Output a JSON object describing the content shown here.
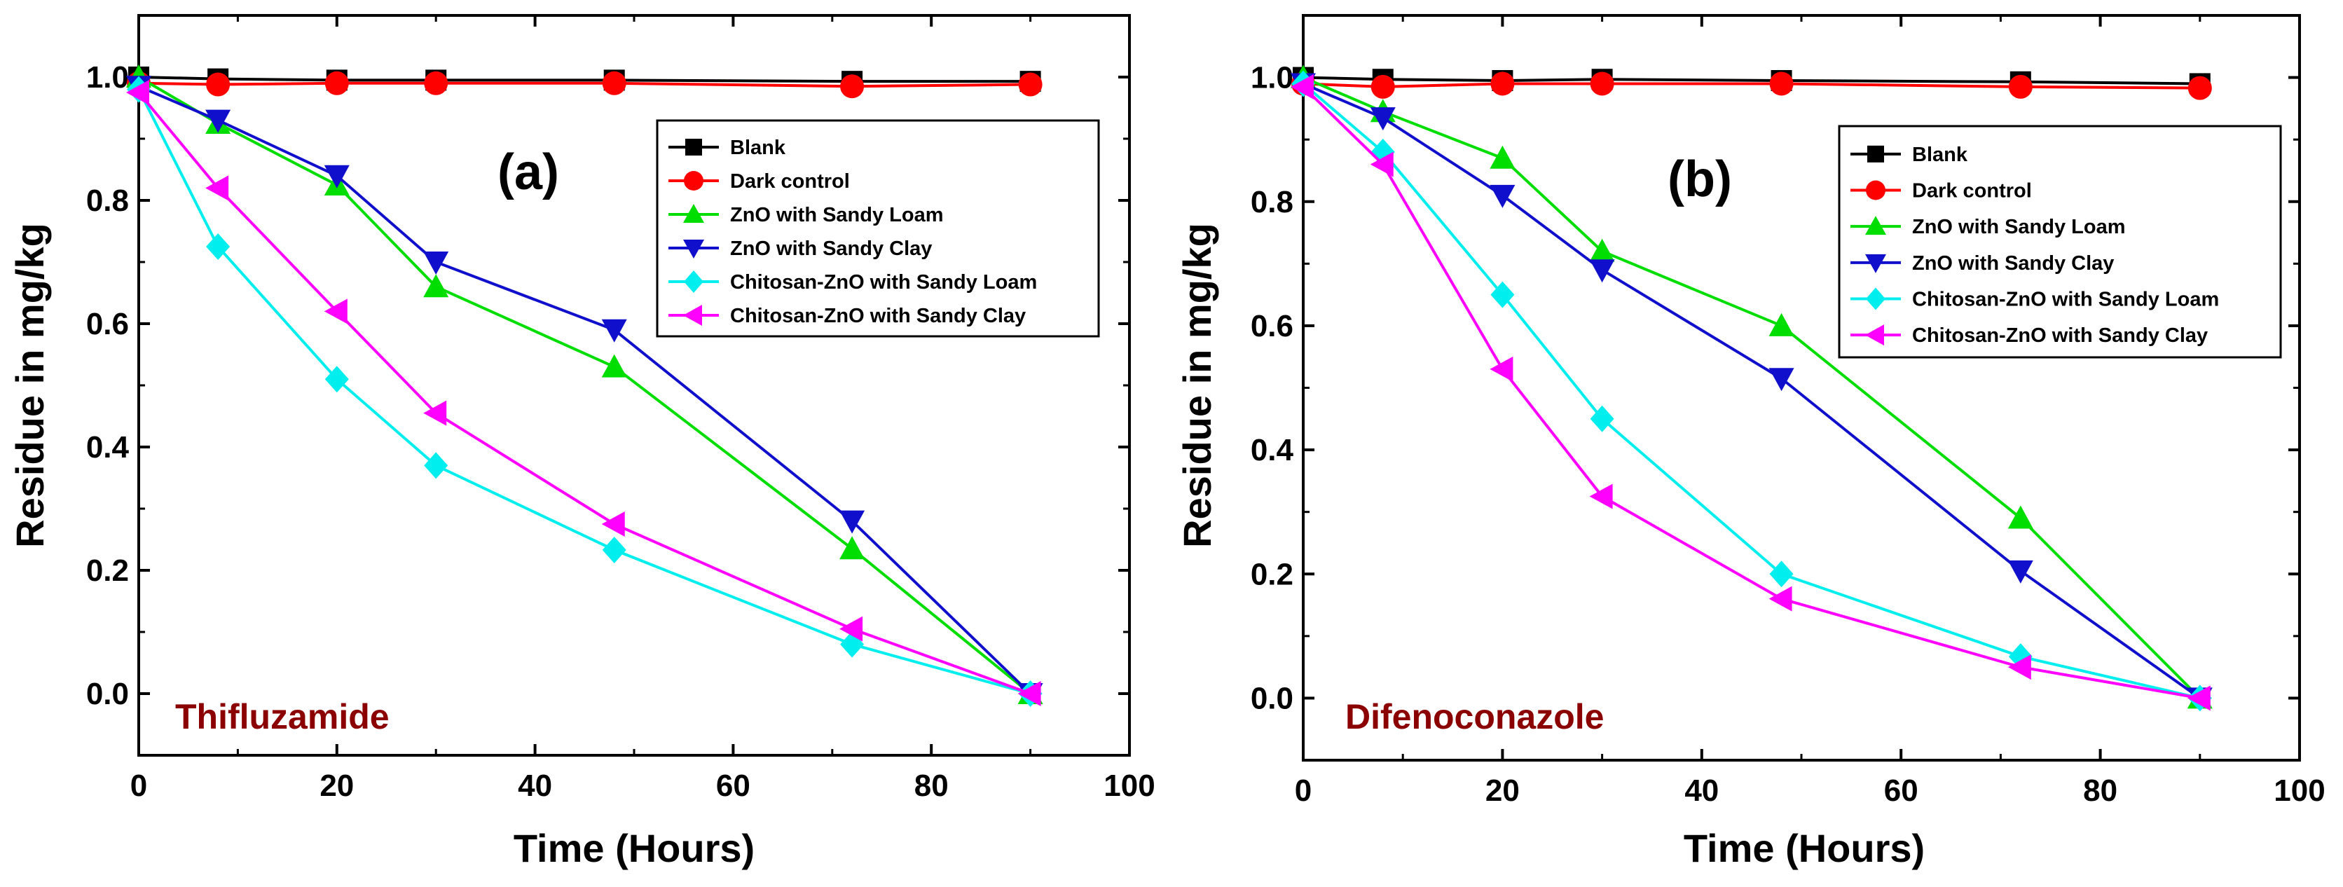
{
  "chart_data": [
    {
      "type": "line",
      "panel_label": "(a)",
      "annotation": "Thifluzamide",
      "annotation_color": "#8b0000",
      "xlabel": "Time (Hours)",
      "ylabel": "Residue in mg/kg",
      "xlim": [
        0,
        100
      ],
      "ylim": [
        -0.1,
        1.1
      ],
      "xticks": [
        0,
        20,
        40,
        60,
        80,
        100
      ],
      "xtick_labels": [
        "0",
        "20",
        "40",
        "60",
        "80",
        "100"
      ],
      "yticks": [
        0.0,
        0.2,
        0.4,
        0.6,
        0.8,
        1.0
      ],
      "ytick_labels": [
        "0.0",
        "0.2",
        "0.4",
        "0.6",
        "0.8",
        "1.0"
      ],
      "legend_position": "top-right",
      "grid": false,
      "x": [
        0,
        8,
        20,
        30,
        48,
        72,
        90
      ],
      "series": [
        {
          "name": "Blank",
          "color": "#000000",
          "marker": "square",
          "values": [
            1.0,
            0.997,
            0.995,
            0.995,
            0.995,
            0.993,
            0.993
          ]
        },
        {
          "name": "Dark control",
          "color": "#ff0000",
          "marker": "circle",
          "values": [
            0.99,
            0.988,
            0.99,
            0.99,
            0.99,
            0.985,
            0.988
          ]
        },
        {
          "name": "ZnO with Sandy Loam",
          "color": "#00dd00",
          "marker": "triangle-up",
          "values": [
            1.0,
            0.925,
            0.825,
            0.66,
            0.53,
            0.235,
            0.0
          ]
        },
        {
          "name": "ZnO with Sandy Clay",
          "color": "#1010cc",
          "marker": "triangle-down",
          "values": [
            0.985,
            0.93,
            0.84,
            0.7,
            0.59,
            0.28,
            0.0
          ]
        },
        {
          "name": "Chitosan-ZnO with Sandy Loam",
          "color": "#00eeee",
          "marker": "diamond",
          "values": [
            0.98,
            0.725,
            0.51,
            0.37,
            0.233,
            0.08,
            0.0
          ]
        },
        {
          "name": "Chitosan-ZnO with Sandy Clay",
          "color": "#ff00ff",
          "marker": "triangle-left",
          "values": [
            0.975,
            0.82,
            0.62,
            0.455,
            0.275,
            0.105,
            0.0
          ]
        }
      ]
    },
    {
      "type": "line",
      "panel_label": "(b)",
      "annotation": "Difenoconazole",
      "annotation_color": "#8b0000",
      "xlabel": "Time (Hours)",
      "ylabel": "Residue in mg/kg",
      "xlim": [
        0,
        100
      ],
      "ylim": [
        -0.1,
        1.1
      ],
      "xticks": [
        0,
        20,
        40,
        60,
        80,
        100
      ],
      "xtick_labels": [
        "0",
        "20",
        "40",
        "60",
        "80",
        "100"
      ],
      "yticks": [
        0.0,
        0.2,
        0.4,
        0.6,
        0.8,
        1.0
      ],
      "ytick_labels": [
        "0.0",
        "0.2",
        "0.4",
        "0.6",
        "0.8",
        "1.0"
      ],
      "legend_position": "top-right",
      "grid": false,
      "x": [
        0,
        8,
        20,
        30,
        48,
        72,
        90
      ],
      "series": [
        {
          "name": "Blank",
          "color": "#000000",
          "marker": "square",
          "values": [
            1.0,
            0.997,
            0.995,
            0.997,
            0.995,
            0.993,
            0.99
          ]
        },
        {
          "name": "Dark control",
          "color": "#ff0000",
          "marker": "circle",
          "values": [
            0.99,
            0.985,
            0.99,
            0.99,
            0.99,
            0.985,
            0.983
          ]
        },
        {
          "name": "ZnO with Sandy Loam",
          "color": "#00dd00",
          "marker": "triangle-up",
          "values": [
            1.0,
            0.945,
            0.87,
            0.72,
            0.6,
            0.29,
            0.0
          ]
        },
        {
          "name": "ZnO with Sandy Clay",
          "color": "#1010cc",
          "marker": "triangle-down",
          "values": [
            0.99,
            0.935,
            0.81,
            0.69,
            0.515,
            0.205,
            0.0
          ]
        },
        {
          "name": "Chitosan-ZnO with Sandy Loam",
          "color": "#00eeee",
          "marker": "diamond",
          "values": [
            0.99,
            0.88,
            0.65,
            0.45,
            0.2,
            0.067,
            0.0
          ]
        },
        {
          "name": "Chitosan-ZnO with Sandy Clay",
          "color": "#ff00ff",
          "marker": "triangle-left",
          "values": [
            0.985,
            0.86,
            0.53,
            0.325,
            0.16,
            0.05,
            0.0
          ]
        }
      ]
    }
  ]
}
